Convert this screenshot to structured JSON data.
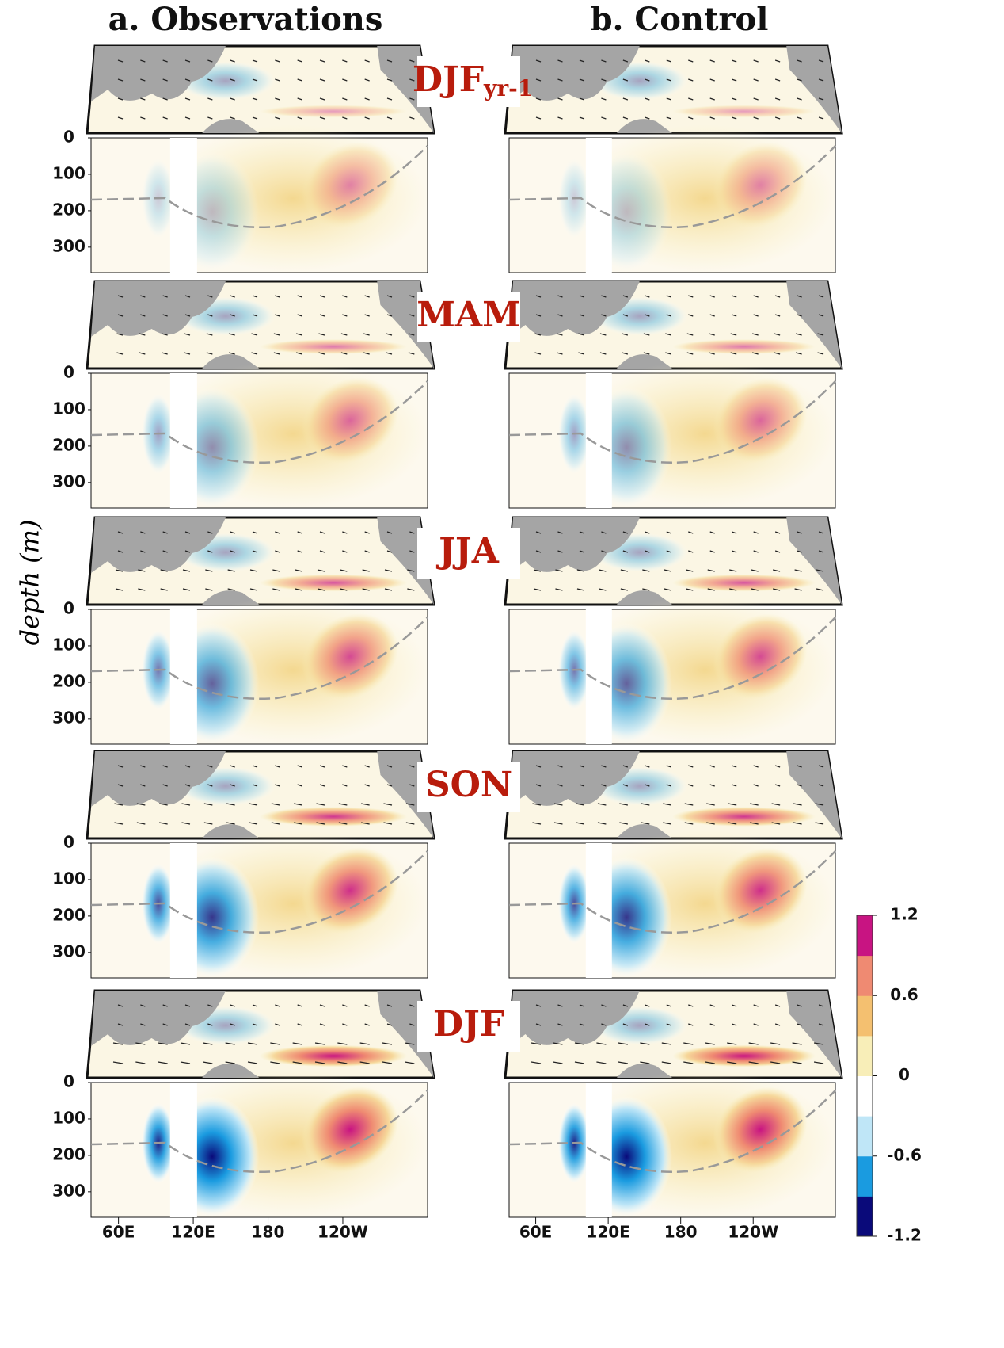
{
  "figure": {
    "columns": [
      "a. Observations",
      "b. Control"
    ],
    "seasons": [
      {
        "label": "DJF",
        "subscript": "yr-1"
      },
      {
        "label": "MAM"
      },
      {
        "label": "JJA"
      },
      {
        "label": "SON"
      },
      {
        "label": "DJF"
      }
    ],
    "y_axis_label": "depth (m)",
    "depth_ylim": [
      0,
      370
    ],
    "depth_ticks": [
      0,
      100,
      200,
      300
    ],
    "lon_xlim": [
      38,
      308
    ],
    "lon_ticks": [
      {
        "value": 60,
        "label": "60E"
      },
      {
        "value": 120,
        "label": "120E"
      },
      {
        "value": 180,
        "label": "180"
      },
      {
        "value": 240,
        "label": "120W"
      }
    ],
    "colorbar": {
      "lim": [
        -1.2,
        1.2
      ],
      "ticks": [
        1.2,
        0.6,
        0,
        -0.6,
        -1.2
      ],
      "colors": [
        "#0a0a7a",
        "#1a9be0",
        "#bfe6f7",
        "#ffffff",
        "#f8eeb8",
        "#f4c070",
        "#ef8a72",
        "#c81482"
      ]
    }
  }
}
